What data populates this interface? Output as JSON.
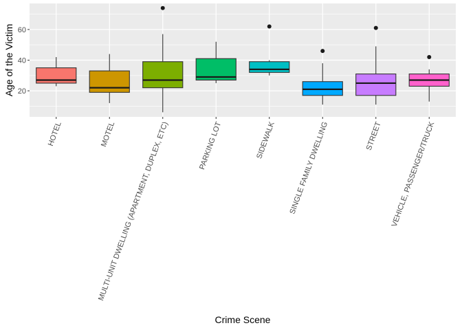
{
  "chart_data": {
    "type": "box",
    "title": "",
    "xlabel": "Crime Scene",
    "ylabel": "Age of the Victim",
    "ylim": [
      3,
      77
    ],
    "yticks": [
      20,
      40,
      60
    ],
    "grid": true,
    "legend": "none",
    "categories": [
      "HOTEL",
      "MOTEL",
      "MULTI-UNIT DWELLING (APARTMENT, DUPLEX, ETC)",
      "PARKING LOT",
      "SIDEWALK",
      "SINGLE FAMILY DWELLING",
      "STREET",
      "VEHICLE, PASSENGER/TRUCK"
    ],
    "boxes": [
      {
        "min": 23,
        "q1": 25,
        "median": 27,
        "q3": 35,
        "max": 42,
        "outliers": [],
        "color": "#F8766D"
      },
      {
        "min": 12,
        "q1": 19,
        "median": 22,
        "q3": 33,
        "max": 44,
        "outliers": [],
        "color": "#CD9600"
      },
      {
        "min": 6,
        "q1": 22,
        "median": 27,
        "q3": 39,
        "max": 57,
        "outliers": [
          74
        ],
        "color": "#7CAE00"
      },
      {
        "min": 25,
        "q1": 27,
        "median": 29,
        "q3": 41,
        "max": 52,
        "outliers": [],
        "color": "#00BE67"
      },
      {
        "min": 30,
        "q1": 32,
        "median": 34,
        "q3": 39,
        "max": 40,
        "outliers": [
          62
        ],
        "color": "#00BFC4"
      },
      {
        "min": 11,
        "q1": 17,
        "median": 21,
        "q3": 26,
        "max": 38,
        "outliers": [
          46
        ],
        "color": "#00A9FF"
      },
      {
        "min": 11,
        "q1": 17,
        "median": 25,
        "q3": 31,
        "max": 49,
        "outliers": [
          61
        ],
        "color": "#C77CFF"
      },
      {
        "min": 13,
        "q1": 23,
        "median": 27,
        "q3": 31,
        "max": 34,
        "outliers": [
          42
        ],
        "color": "#FF61CC"
      }
    ]
  }
}
